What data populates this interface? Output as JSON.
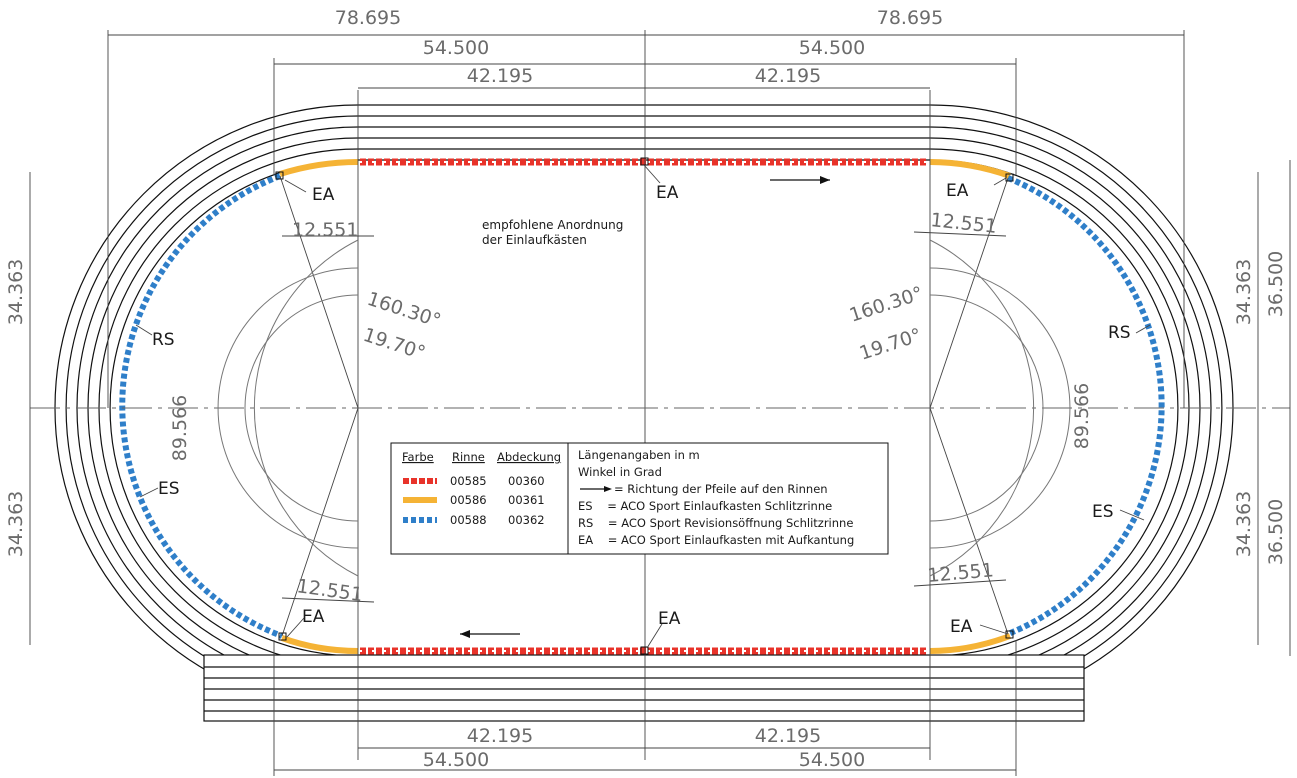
{
  "dimensions": {
    "half_78": "78.695",
    "half_545": "54.500",
    "half_42": "42.195",
    "radius_l": "34.363",
    "radius_r": "36.500",
    "chord": "12.551",
    "arc_span": "89.566",
    "angle_big": "160.30°",
    "angle_small": "19.70°"
  },
  "labels": {
    "ea": "EA",
    "rs": "RS",
    "es": "ES"
  },
  "note": {
    "line1": "empfohlene Anordnung",
    "line2": "der Einlaufkästen"
  },
  "legend": {
    "headers": [
      "Farbe",
      "Rinne",
      "Abdeckung"
    ],
    "rows": [
      {
        "rinne": "00585",
        "abdeckung": "00360",
        "color": "#e8332a"
      },
      {
        "rinne": "00586",
        "abdeckung": "00361",
        "color": "#f5b335"
      },
      {
        "rinne": "00588",
        "abdeckung": "00362",
        "color": "#2f7fc9"
      }
    ],
    "info": [
      "Längenangaben in m",
      "Winkel in Grad",
      "= Richtung der Pfeile auf den Rinnen",
      "ES    = ACO Sport Einlaufkasten Schlitzrinne",
      "RS    = ACO Sport Revisionsöffnung Schlitzrinne",
      "EA    = ACO Sport Einlaufkasten mit Aufkantung"
    ]
  },
  "colors": {
    "red_channel": "#e8332a",
    "orange_channel": "#f5b335",
    "blue_channel": "#2f7fc9",
    "dimension_text": "#6b6b6b"
  }
}
